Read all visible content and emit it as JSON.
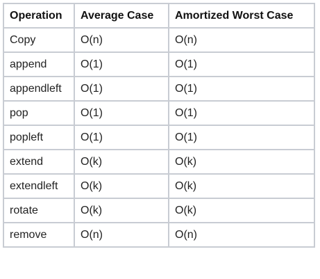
{
  "table": {
    "headers": [
      "Operation",
      "Average Case",
      "Amortized Worst Case"
    ],
    "rows": [
      [
        "Copy",
        "O(n)",
        "O(n)"
      ],
      [
        "append",
        "O(1)",
        "O(1)"
      ],
      [
        "appendleft",
        "O(1)",
        "O(1)"
      ],
      [
        "pop",
        "O(1)",
        "O(1)"
      ],
      [
        "popleft",
        "O(1)",
        "O(1)"
      ],
      [
        "extend",
        "O(k)",
        "O(k)"
      ],
      [
        "extendleft",
        "O(k)",
        "O(k)"
      ],
      [
        "rotate",
        "O(k)",
        "O(k)"
      ],
      [
        "remove",
        "O(n)",
        "O(n)"
      ]
    ]
  },
  "colors": {
    "border": "#c8ccd3",
    "text": "#222222"
  }
}
